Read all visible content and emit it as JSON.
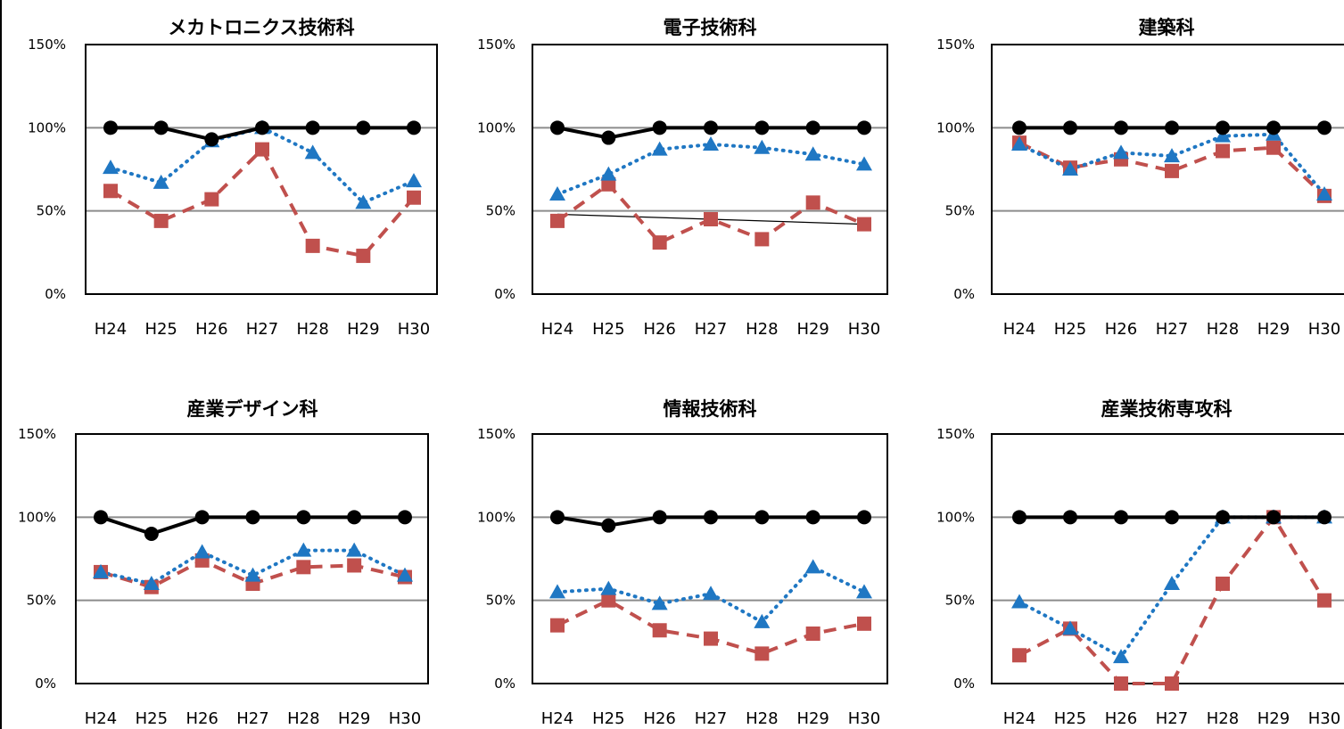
{
  "chart_data": [
    {
      "type": "line",
      "title": "メカトロニクス技術科",
      "categories": [
        "H24",
        "H25",
        "H26",
        "H27",
        "H28",
        "H29",
        "H30"
      ],
      "yticks": [
        "0%",
        "50%",
        "100%",
        "150%"
      ],
      "ylim": [
        0,
        150
      ],
      "grid": true,
      "series": [
        {
          "values": [
            100,
            100,
            93,
            100,
            100,
            100,
            100
          ],
          "color": "#000000",
          "style": "solid",
          "marker": "circle"
        },
        {
          "values": [
            76,
            67,
            92,
            100,
            85,
            55,
            68
          ],
          "color": "#1f77c3",
          "style": "dotted",
          "marker": "triangle"
        },
        {
          "values": [
            62,
            44,
            57,
            87,
            29,
            23,
            58
          ],
          "color": "#c0504d",
          "style": "dashed",
          "marker": "square"
        }
      ]
    },
    {
      "type": "line",
      "title": "電子技術科",
      "categories": [
        "H24",
        "H25",
        "H26",
        "H27",
        "H28",
        "H29",
        "H30"
      ],
      "yticks": [
        "0%",
        "50%",
        "100%",
        "150%"
      ],
      "ylim": [
        0,
        150
      ],
      "grid": true,
      "trendline": {
        "from": 48,
        "to": 42
      },
      "series": [
        {
          "values": [
            100,
            94,
            100,
            100,
            100,
            100,
            100
          ],
          "color": "#000000",
          "style": "solid",
          "marker": "circle"
        },
        {
          "values": [
            60,
            72,
            87,
            90,
            88,
            84,
            78
          ],
          "color": "#1f77c3",
          "style": "dotted",
          "marker": "triangle"
        },
        {
          "values": [
            44,
            66,
            31,
            45,
            33,
            55,
            42
          ],
          "color": "#c0504d",
          "style": "dashed",
          "marker": "square"
        }
      ]
    },
    {
      "type": "line",
      "title": "建築科",
      "categories": [
        "H24",
        "H25",
        "H26",
        "H27",
        "H28",
        "H29",
        "H30"
      ],
      "yticks": [
        "0%",
        "50%",
        "100%",
        "150%"
      ],
      "ylim": [
        0,
        150
      ],
      "grid": true,
      "series": [
        {
          "values": [
            100,
            100,
            100,
            100,
            100,
            100,
            100
          ],
          "color": "#000000",
          "style": "solid",
          "marker": "circle"
        },
        {
          "values": [
            90,
            75,
            85,
            83,
            95,
            96,
            60
          ],
          "color": "#1f77c3",
          "style": "dotted",
          "marker": "triangle"
        },
        {
          "values": [
            91,
            76,
            81,
            74,
            86,
            88,
            59
          ],
          "color": "#c0504d",
          "style": "dashed",
          "marker": "square"
        }
      ]
    },
    {
      "type": "line",
      "title": "産業デザイン科",
      "categories": [
        "H24",
        "H25",
        "H26",
        "H27",
        "H28",
        "H29",
        "H30"
      ],
      "yticks": [
        "0%",
        "50%",
        "100%",
        "150%"
      ],
      "ylim": [
        0,
        150
      ],
      "grid": true,
      "series": [
        {
          "values": [
            100,
            90,
            100,
            100,
            100,
            100,
            100
          ],
          "color": "#000000",
          "style": "solid",
          "marker": "circle"
        },
        {
          "values": [
            67,
            60,
            79,
            65,
            80,
            80,
            65
          ],
          "color": "#1f77c3",
          "style": "dotted",
          "marker": "triangle"
        },
        {
          "values": [
            67,
            58,
            74,
            60,
            70,
            71,
            64
          ],
          "color": "#c0504d",
          "style": "dashed",
          "marker": "square"
        }
      ]
    },
    {
      "type": "line",
      "title": "情報技術科",
      "categories": [
        "H24",
        "H25",
        "H26",
        "H27",
        "H28",
        "H29",
        "H30"
      ],
      "yticks": [
        "0%",
        "50%",
        "100%",
        "150%"
      ],
      "ylim": [
        0,
        150
      ],
      "grid": true,
      "series": [
        {
          "values": [
            100,
            95,
            100,
            100,
            100,
            100,
            100
          ],
          "color": "#000000",
          "style": "solid",
          "marker": "circle"
        },
        {
          "values": [
            55,
            57,
            48,
            54,
            37,
            70,
            55
          ],
          "color": "#1f77c3",
          "style": "dotted",
          "marker": "triangle"
        },
        {
          "values": [
            35,
            50,
            32,
            27,
            18,
            30,
            36
          ],
          "color": "#c0504d",
          "style": "dashed",
          "marker": "square"
        }
      ]
    },
    {
      "type": "line",
      "title": "産業技術専攻科",
      "categories": [
        "H24",
        "H25",
        "H26",
        "H27",
        "H28",
        "H29",
        "H30"
      ],
      "yticks": [
        "0%",
        "50%",
        "100%",
        "150%"
      ],
      "ylim": [
        0,
        150
      ],
      "grid": true,
      "series": [
        {
          "values": [
            100,
            100,
            100,
            100,
            100,
            100,
            100
          ],
          "color": "#000000",
          "style": "solid",
          "marker": "circle"
        },
        {
          "values": [
            49,
            33,
            16,
            60,
            100,
            100,
            100
          ],
          "color": "#1f77c3",
          "style": "dotted",
          "marker": "triangle"
        },
        {
          "values": [
            17,
            33,
            0,
            0,
            60,
            100,
            50
          ],
          "color": "#c0504d",
          "style": "dashed",
          "marker": "square"
        }
      ]
    }
  ]
}
